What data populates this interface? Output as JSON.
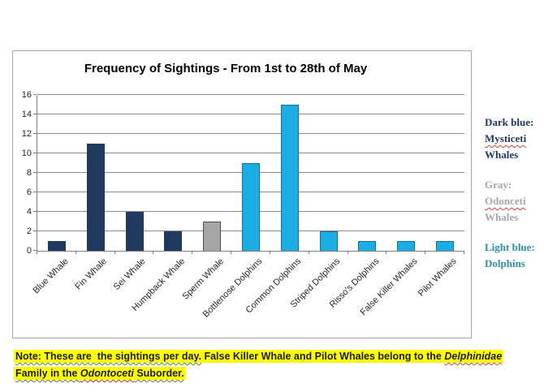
{
  "chart_data": {
    "type": "bar",
    "title": "Frequency of Sightings - From 1st to 28th of May",
    "categories": [
      "Blue Whale",
      "Fin Whale",
      "Sei Whale",
      "Humpback Whale",
      "Sperm Whale",
      "Bottlenose Dolphins",
      "Common Dolphins",
      "Striped Dolphins",
      "Risso's Dolphins",
      "False Killer Whales",
      "Pilot Whales"
    ],
    "values": [
      1,
      11,
      4,
      2,
      3,
      9,
      15,
      2,
      1,
      1,
      1
    ],
    "bar_groups": [
      "dark",
      "dark",
      "dark",
      "dark",
      "gray",
      "light",
      "light",
      "light",
      "light",
      "light",
      "light"
    ],
    "group_colors": {
      "dark": {
        "fill": "#1f3a5e",
        "border": "#1f3a5e"
      },
      "gray": {
        "fill": "#a6a6a6",
        "border": "#4d4d4d"
      },
      "light": {
        "fill": "#1cade4",
        "border": "#156f96"
      }
    },
    "xlabel": "",
    "ylabel": "",
    "ylim": [
      0,
      16
    ],
    "ytick_step": 2,
    "grid": true,
    "legend_position": "right-outside"
  },
  "legend": {
    "items": [
      {
        "color": "#1f3864",
        "lines": [
          {
            "text": "Dark blue:"
          },
          {
            "text": "Mysticeti",
            "wavy": true
          },
          {
            "text": "Whales"
          }
        ]
      },
      {
        "color": "#a6a6a6",
        "lines": [
          {
            "text": "Gray:"
          },
          {
            "text": "Odonceti",
            "wavy": true
          },
          {
            "text": "Whales"
          }
        ]
      },
      {
        "color": "#2e8fac",
        "lines": [
          {
            "text": "Light blue:"
          },
          {
            "text": "Dolphins"
          }
        ]
      }
    ]
  },
  "note": {
    "highlight_color": "#ffff00",
    "line1": [
      {
        "text": "Note: These are  the sightings per day.",
        "grammar": true
      },
      {
        "text": " False Killer Whale and Pilot Whales belong to the "
      },
      {
        "text": "Delphinidae",
        "italic": true,
        "spell": true
      }
    ],
    "line2": [
      {
        "text": "Family in the "
      },
      {
        "text": "Odontoceti",
        "italic": true,
        "spell": true
      },
      {
        "text": " Suborder."
      }
    ],
    "line2_grammar": true
  }
}
